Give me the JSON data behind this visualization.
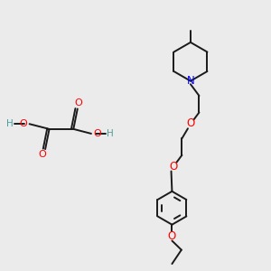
{
  "bg_color": "#ebebeb",
  "line_color": "#1a1a1a",
  "oxygen_color": "#ff0000",
  "nitrogen_color": "#0000ff",
  "hydrogen_color": "#4a9e9e",
  "line_width": 1.4,
  "font_size": 7.5,
  "fig_w": 3.0,
  "fig_h": 3.0,
  "dpi": 100,
  "xlim": [
    0,
    10
  ],
  "ylim": [
    0,
    10
  ]
}
